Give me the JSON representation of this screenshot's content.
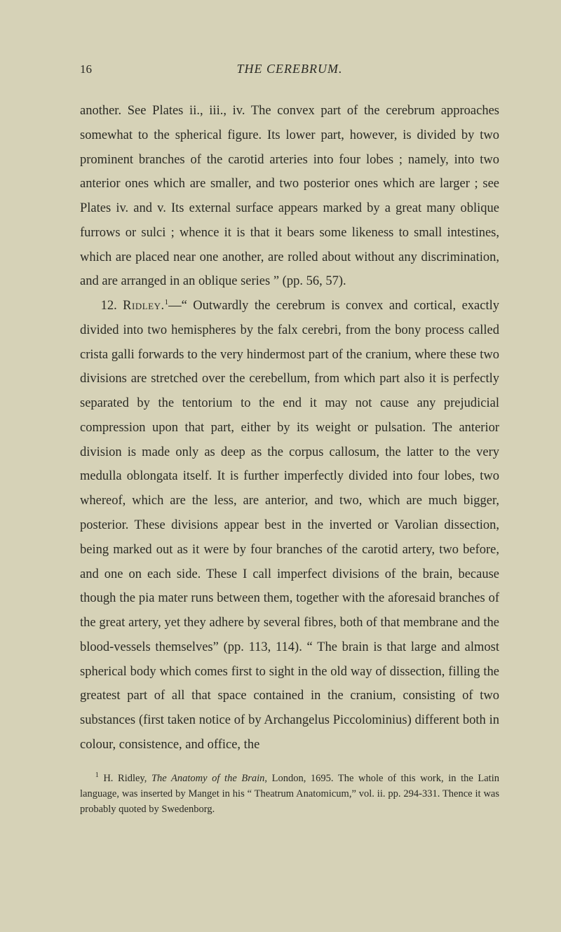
{
  "page": {
    "number": "16",
    "running_title": "THE CEREBRUM.",
    "background_color": "#d6d2b7",
    "text_color": "#2a2a24",
    "body_fontsize": 18.5,
    "body_lineheight": 1.88,
    "footnote_fontsize": 14.5
  },
  "para1": {
    "t1": "another. See Plates ii., iii., iv. The convex part of the cere­brum approaches somewhat to the spherical figure. Its lower part, however, is divided by two prominent branches of the carotid arteries into four lobes ; namely, into two anterior ones which are smaller, and two posterior ones which are larger ; see Plates iv. and v. Its external surface appears marked by a great many oblique furrows or sulci ; whence it is that it bears some likeness to small intestines, which are placed near one another, are rolled about without any discrimination, and are arranged in an oblique series ” (pp. 56, 57)."
  },
  "para2": {
    "lead": "12. ",
    "name": "Ridley.",
    "sup": "1",
    "t1": "—“ Outwardly the cerebrum is convex and cortical, exactly divided into two hemispheres by the falx cerebri, from the bony process called crista galli forwards to the very hinder­most part of the cranium, where these two divisions are stretched over the cerebellum, from which part also it is perfectly separated by the tentorium to the end it may not cause any prejudicial compression upon that part, either by its weight or pulsation. The anterior division is made only as deep as the corpus cal­losum, the latter to the very medulla oblongata itself. It is further imperfectly divided into four lobes, two whereof, which are the less, are anterior, and two, which are much bigger, posterior. These divisions appear best in the inverted or Varo­lian dissection, being marked out as it were by four branches of the carotid artery, two before, and one on each side. These I call imperfect divisions of the brain, because though the pia mater runs between them, together with the aforesaid branches of the great artery, yet they adhere by several fibres, both of that membrane and the blood-vessels themselves” (pp. 113, 114). “ The brain is that large and almost spherical body which comes first to sight in the old way of dissection, filling the greatest part of all that space contained in the cranium, consist­ing of two substances (first taken notice of by Archangelus Pic­colominius) different both in colour, consistence, and office, the"
  },
  "footnote": {
    "sup": "1",
    "t1": " H. Ridley, ",
    "title": "The Anatomy of the Brain",
    "t2": ", London, 1695. The whole of this work, in the Latin language, was inserted by Manget in his “ Theatrum Anato­micum,” vol. ii. pp. 294-331. Thence it was probably quoted by Swedenborg."
  }
}
